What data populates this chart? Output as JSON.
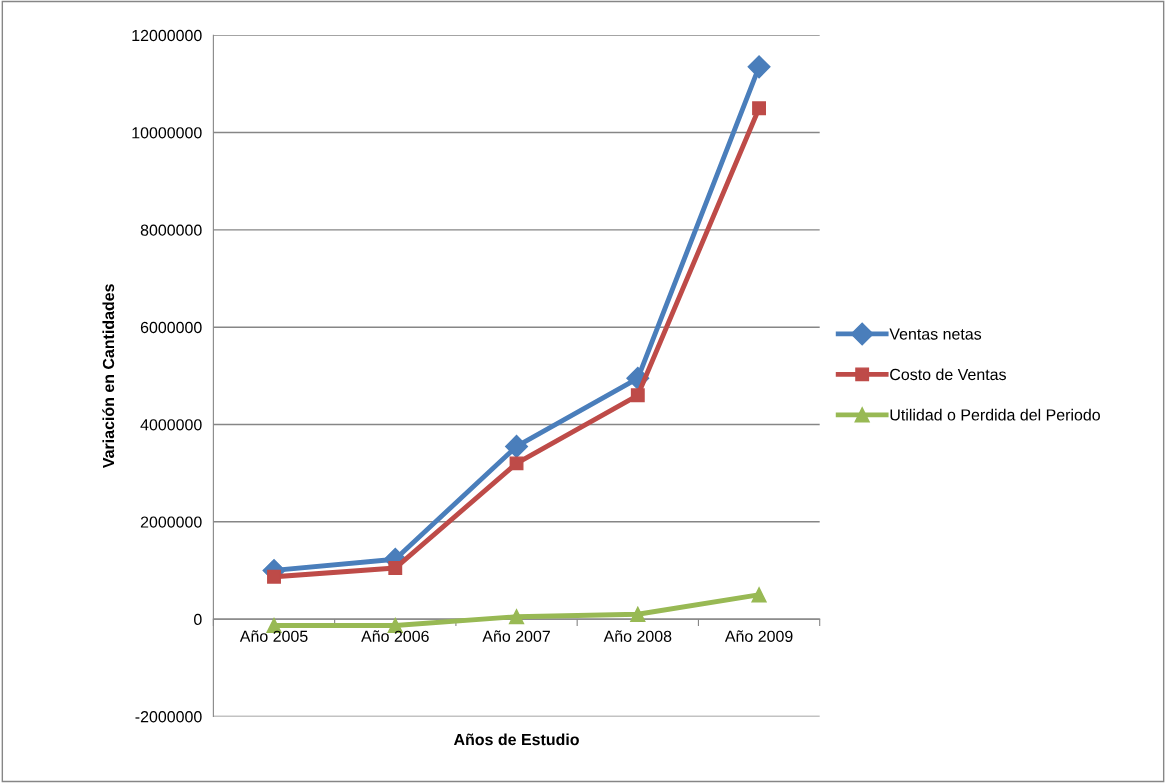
{
  "chart_data": {
    "type": "line",
    "xlabel": "Años de Estudio",
    "ylabel": "Variación en Cantidades",
    "categories": [
      "Año 2005",
      "Año 2006",
      "Año 2007",
      "Año 2008",
      "Año 2009"
    ],
    "series": [
      {
        "name": "Ventas netas",
        "color": "#4a7ebb",
        "marker": "diamond",
        "values": [
          1000000,
          1230000,
          3550000,
          4950000,
          11350000
        ]
      },
      {
        "name": "Costo de Ventas",
        "color": "#be4b48",
        "marker": "square",
        "values": [
          870000,
          1050000,
          3200000,
          4600000,
          10500000
        ]
      },
      {
        "name": "Utilidad o Perdida del Periodo",
        "color": "#98b954",
        "marker": "triangle",
        "values": [
          -130000,
          -130000,
          50000,
          100000,
          500000
        ]
      }
    ],
    "ylim": [
      -2000000,
      12000000
    ],
    "yticks": [
      -2000000,
      0,
      2000000,
      4000000,
      6000000,
      8000000,
      10000000,
      12000000
    ],
    "grid": "y",
    "legend": "right",
    "line_style": "solid"
  }
}
